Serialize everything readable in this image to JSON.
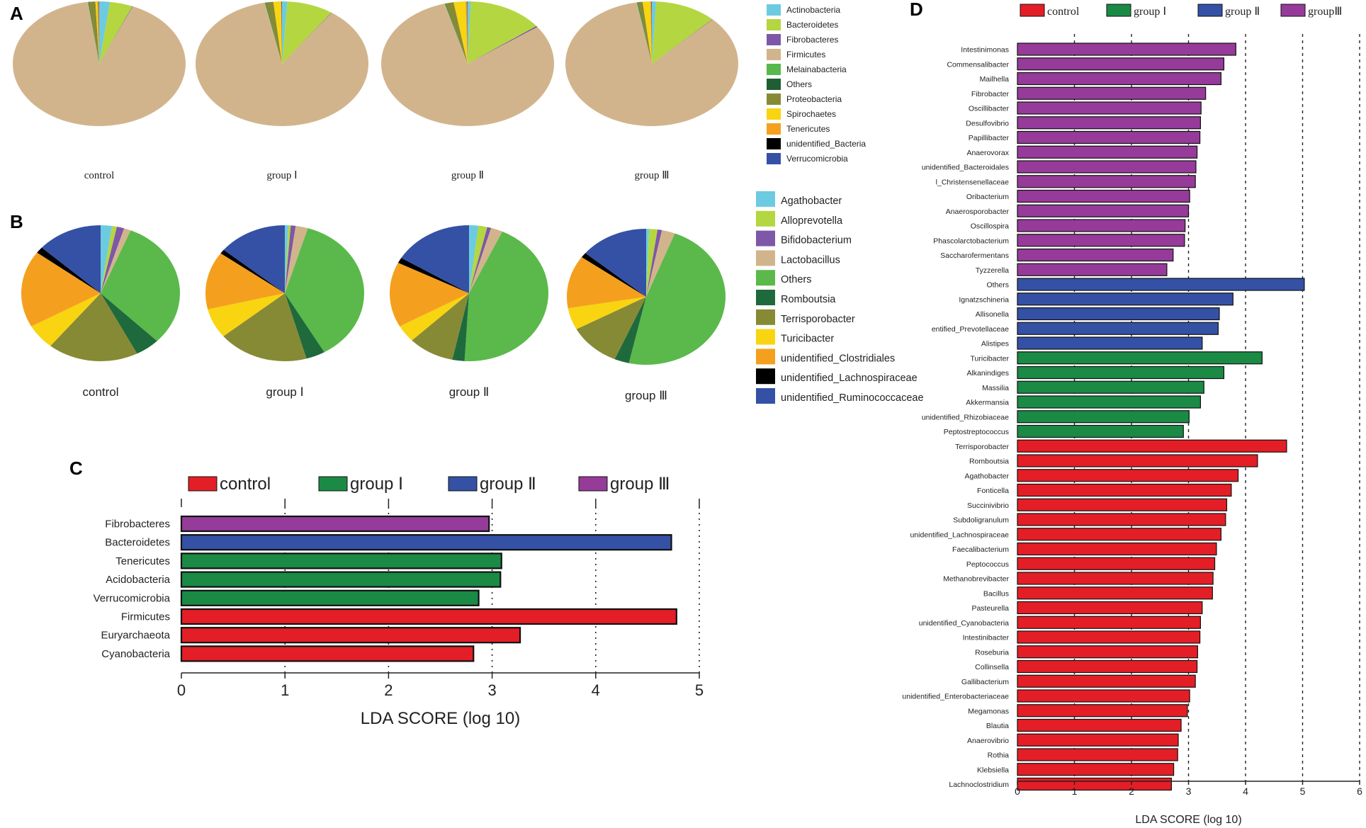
{
  "panels": {
    "a": "A",
    "b": "B",
    "c": "C",
    "d": "D"
  },
  "colors": {
    "control": "#e41e26",
    "group1": "#1a8a45",
    "group2": "#3451a5",
    "group3": "#963b9a",
    "Actinobacteria": "#6ccbe0",
    "Bacteroidetes": "#b4d640",
    "Fibrobacteres": "#7e57a8",
    "Firmicutes": "#d2b48c",
    "Melainabacteria": "#57b84c",
    "Others_phylum": "#1f5e33",
    "Proteobacteria": "#878a35",
    "Spirochaetes": "#f9d411",
    "Tenericutes": "#f4a01e",
    "unidentified_Bacteria": "#000000",
    "Verrucomicrobia": "#3451a5",
    "Agathobacter": "#6ccbe0",
    "Alloprevotella": "#b4d640",
    "Bifidobacterium": "#7e57a8",
    "Lactobacillus": "#d2b48c",
    "Others_genus": "#5ab94a",
    "Romboutsia": "#1f6a3c",
    "Terrisporobacter": "#878a35",
    "Turicibacter": "#f9d411",
    "unidentified_Clostridiales": "#f4a01e",
    "unidentified_Lachnospiraceae": "#000000",
    "unidentified_Ruminococcaceae": "#3451a5"
  },
  "chart_data": [
    {
      "type": "pie",
      "panel": "A",
      "legend_title": "",
      "labels": [
        "Actinobacteria",
        "Bacteroidetes",
        "Fibrobacteres",
        "Firmicutes",
        "Melainabacteria",
        "Others",
        "Proteobacteria",
        "Spirochaetes",
        "Tenericutes",
        "unidentified_Bacteria",
        "Verrucomicrobia"
      ],
      "color_keys": [
        "Actinobacteria",
        "Bacteroidetes",
        "Fibrobacteres",
        "Firmicutes",
        "Melainabacteria",
        "Others_phylum",
        "Proteobacteria",
        "Spirochaetes",
        "Tenericutes",
        "unidentified_Bacteria",
        "Verrucomicrobia"
      ],
      "groups": [
        {
          "name": "control",
          "values": {
            "Actinobacteria": 2.0,
            "Bacteroidetes": 4.3,
            "Fibrobacteres": 0.1,
            "Firmicutes": 91.5,
            "Melainabacteria": 0.1,
            "Others": 0.1,
            "Proteobacteria": 1.2,
            "Spirochaetes": 0.3,
            "Tenericutes": 0.3,
            "unidentified_Bacteria": 0.05,
            "Verrucomicrobia": 0.05
          }
        },
        {
          "name": "group Ⅰ",
          "values": {
            "Actinobacteria": 1.0,
            "Bacteroidetes": 8.7,
            "Fibrobacteres": 0.1,
            "Firmicutes": 87.0,
            "Melainabacteria": 0.1,
            "Others": 0.1,
            "Proteobacteria": 1.4,
            "Spirochaetes": 1.4,
            "Tenericutes": 0.1,
            "unidentified_Bacteria": 0.05,
            "Verrucomicrobia": 0.05
          }
        },
        {
          "name": "group Ⅱ",
          "values": {
            "Actinobacteria": 0.6,
            "Bacteroidetes": 14.1,
            "Fibrobacteres": 0.3,
            "Firmicutes": 81.0,
            "Melainabacteria": 0.1,
            "Others": 0.1,
            "Proteobacteria": 1.5,
            "Spirochaetes": 2.2,
            "Tenericutes": 0.3,
            "unidentified_Bacteria": 0.05,
            "Verrucomicrobia": 0.05
          }
        },
        {
          "name": "group Ⅲ",
          "values": {
            "Actinobacteria": 0.8,
            "Bacteroidetes": 11.6,
            "Fibrobacteres": 0.1,
            "Firmicutes": 85.0,
            "Melainabacteria": 0.1,
            "Others": 0.1,
            "Proteobacteria": 0.9,
            "Spirochaetes": 1.4,
            "Tenericutes": 0.2,
            "unidentified_Bacteria": 0.05,
            "Verrucomicrobia": 0.05
          }
        }
      ]
    },
    {
      "type": "pie",
      "panel": "B",
      "labels": [
        "Agathobacter",
        "Alloprevotella",
        "Bifidobacterium",
        "Lactobacillus",
        "Others",
        "Romboutsia",
        "Terrisporobacter",
        "Turicibacter",
        "unidentified_Clostridiales",
        "unidentified_Lachnospiraceae",
        "unidentified_Ruminococcaceae"
      ],
      "color_keys": [
        "Agathobacter",
        "Alloprevotella",
        "Bifidobacterium",
        "Lactobacillus",
        "Others_genus",
        "Romboutsia",
        "Terrisporobacter",
        "Turicibacter",
        "unidentified_Clostridiales",
        "unidentified_Lachnospiraceae",
        "unidentified_Ruminococcaceae"
      ],
      "groups": [
        {
          "name": "control",
          "values": {
            "Agathobacter": 2.3,
            "Alloprevotella": 1.0,
            "Bifidobacterium": 1.5,
            "Lactobacillus": 1.4,
            "Others": 31.2,
            "Romboutsia": 5.0,
            "Terrisporobacter": 18.5,
            "Turicibacter": 6.0,
            "unidentified_Clostridiales": 18.3,
            "unidentified_Lachnospiraceae": 1.5,
            "unidentified_Ruminococcaceae": 13.3
          }
        },
        {
          "name": "group Ⅰ",
          "values": {
            "Agathobacter": 0.7,
            "Alloprevotella": 0.5,
            "Bifidobacterium": 1.0,
            "Lactobacillus": 2.5,
            "Others": 37.0,
            "Romboutsia": 3.9,
            "Terrisporobacter": 18.5,
            "Turicibacter": 7.1,
            "unidentified_Clostridiales": 13.8,
            "unidentified_Lachnospiraceae": 1.0,
            "unidentified_Ruminococcaceae": 14.0
          }
        },
        {
          "name": "group Ⅱ",
          "values": {
            "Agathobacter": 1.9,
            "Alloprevotella": 1.8,
            "Bifidobacterium": 0.8,
            "Lactobacillus": 2.4,
            "Others": 44.0,
            "Romboutsia": 2.5,
            "Terrisporobacter": 9.4,
            "Turicibacter": 4.1,
            "unidentified_Clostridiales": 15.5,
            "unidentified_Lachnospiraceae": 1.3,
            "unidentified_Ruminococcaceae": 16.3
          }
        },
        {
          "name": "group Ⅲ",
          "values": {
            "Agathobacter": 0.6,
            "Alloprevotella": 1.7,
            "Bifidobacterium": 0.9,
            "Lactobacillus": 2.7,
            "Others": 47.6,
            "Romboutsia": 3.0,
            "Terrisporobacter": 10.6,
            "Turicibacter": 5.2,
            "unidentified_Clostridiales": 12.6,
            "unidentified_Lachnospiraceae": 1.2,
            "unidentified_Ruminococcaceae": 13.9
          }
        }
      ]
    },
    {
      "type": "bar",
      "panel": "C",
      "orientation": "horizontal",
      "legend": [
        {
          "name": "control",
          "color_key": "control"
        },
        {
          "name": "group Ⅰ",
          "color_key": "group1"
        },
        {
          "name": "group Ⅱ",
          "color_key": "group2"
        },
        {
          "name": "group Ⅲ",
          "color_key": "group3"
        }
      ],
      "xlabel": "LDA SCORE (log 10)",
      "xlim": [
        0,
        5
      ],
      "ticks": [
        0,
        1,
        2,
        3,
        4,
        5
      ],
      "bars": [
        {
          "label": "Fibrobacteres",
          "value": 2.97,
          "group": "group3"
        },
        {
          "label": "Bacteroidetes",
          "value": 4.73,
          "group": "group2"
        },
        {
          "label": "Tenericutes",
          "value": 3.09,
          "group": "group1"
        },
        {
          "label": "Acidobacteria",
          "value": 3.08,
          "group": "group1"
        },
        {
          "label": "Verrucomicrobia",
          "value": 2.87,
          "group": "group1"
        },
        {
          "label": "Firmicutes",
          "value": 4.78,
          "group": "control"
        },
        {
          "label": "Euryarchaeota",
          "value": 3.27,
          "group": "control"
        },
        {
          "label": "Cyanobacteria",
          "value": 2.82,
          "group": "control"
        }
      ]
    },
    {
      "type": "bar",
      "panel": "D",
      "orientation": "horizontal",
      "legend": [
        {
          "name": "control",
          "color_key": "control"
        },
        {
          "name": "group Ⅰ",
          "color_key": "group1"
        },
        {
          "name": "group Ⅱ",
          "color_key": "group2"
        },
        {
          "name": "groupⅢ",
          "color_key": "group3"
        }
      ],
      "xlabel": "LDA SCORE (log 10)",
      "xlim": [
        0,
        6
      ],
      "ticks": [
        0,
        1,
        2,
        3,
        4,
        5,
        6
      ],
      "bars": [
        {
          "label": "Intestinimonas",
          "value": 3.83,
          "group": "group3"
        },
        {
          "label": "Commensalibacter",
          "value": 3.62,
          "group": "group3"
        },
        {
          "label": "Mailhella",
          "value": 3.57,
          "group": "group3"
        },
        {
          "label": "Fibrobacter",
          "value": 3.3,
          "group": "group3"
        },
        {
          "label": "Oscillibacter",
          "value": 3.22,
          "group": "group3"
        },
        {
          "label": "Desulfovibrio",
          "value": 3.21,
          "group": "group3"
        },
        {
          "label": "Papillibacter",
          "value": 3.2,
          "group": "group3"
        },
        {
          "label": "Anaerovorax",
          "value": 3.15,
          "group": "group3"
        },
        {
          "label": "unidentified_Bacteroidales",
          "value": 3.13,
          "group": "group3"
        },
        {
          "label": "l_Christensenellaceae",
          "value": 3.12,
          "group": "group3"
        },
        {
          "label": "Oribacterium",
          "value": 3.02,
          "group": "group3"
        },
        {
          "label": "Anaerosporobacter",
          "value": 3.0,
          "group": "group3"
        },
        {
          "label": "Oscillospira",
          "value": 2.94,
          "group": "group3"
        },
        {
          "label": "Phascolarctobacterium",
          "value": 2.93,
          "group": "group3"
        },
        {
          "label": "Saccharofermentans",
          "value": 2.73,
          "group": "group3"
        },
        {
          "label": "Tyzzerella",
          "value": 2.62,
          "group": "group3"
        },
        {
          "label": "Others",
          "value": 5.03,
          "group": "group2"
        },
        {
          "label": "Ignatzschineria",
          "value": 3.78,
          "group": "group2"
        },
        {
          "label": "Allisonella",
          "value": 3.54,
          "group": "group2"
        },
        {
          "label": "entified_Prevotellaceae",
          "value": 3.52,
          "group": "group2"
        },
        {
          "label": "Alistipes",
          "value": 3.24,
          "group": "group2"
        },
        {
          "label": "Turicibacter",
          "value": 4.29,
          "group": "group1"
        },
        {
          "label": "Alkanindiges",
          "value": 3.62,
          "group": "group1"
        },
        {
          "label": "Massilia",
          "value": 3.27,
          "group": "group1"
        },
        {
          "label": "Akkermansia",
          "value": 3.21,
          "group": "group1"
        },
        {
          "label": "unidentified_Rhizobiaceae",
          "value": 3.01,
          "group": "group1"
        },
        {
          "label": "Peptostreptococcus",
          "value": 2.91,
          "group": "group1"
        },
        {
          "label": "Terrisporobacter",
          "value": 4.72,
          "group": "control"
        },
        {
          "label": "Romboutsia",
          "value": 4.21,
          "group": "control"
        },
        {
          "label": "Agathobacter",
          "value": 3.87,
          "group": "control"
        },
        {
          "label": "Fonticella",
          "value": 3.75,
          "group": "control"
        },
        {
          "label": "Succinivibrio",
          "value": 3.67,
          "group": "control"
        },
        {
          "label": "Subdoligranulum",
          "value": 3.65,
          "group": "control"
        },
        {
          "label": "unidentified_Lachnospiraceae",
          "value": 3.57,
          "group": "control"
        },
        {
          "label": "Faecalibacterium",
          "value": 3.49,
          "group": "control"
        },
        {
          "label": "Peptococcus",
          "value": 3.46,
          "group": "control"
        },
        {
          "label": "Methanobrevibacter",
          "value": 3.43,
          "group": "control"
        },
        {
          "label": "Bacillus",
          "value": 3.42,
          "group": "control"
        },
        {
          "label": "Pasteurella",
          "value": 3.24,
          "group": "control"
        },
        {
          "label": "unidentified_Cyanobacteria",
          "value": 3.21,
          "group": "control"
        },
        {
          "label": "Intestinibacter",
          "value": 3.2,
          "group": "control"
        },
        {
          "label": "Roseburia",
          "value": 3.16,
          "group": "control"
        },
        {
          "label": "Collinsella",
          "value": 3.15,
          "group": "control"
        },
        {
          "label": "Gallibacterium",
          "value": 3.12,
          "group": "control"
        },
        {
          "label": "unidentified_Enterobacteriaceae",
          "value": 3.02,
          "group": "control"
        },
        {
          "label": "Megamonas",
          "value": 2.98,
          "group": "control"
        },
        {
          "label": "Blautia",
          "value": 2.87,
          "group": "control"
        },
        {
          "label": "Anaerovibrio",
          "value": 2.82,
          "group": "control"
        },
        {
          "label": "Rothia",
          "value": 2.81,
          "group": "control"
        },
        {
          "label": "Klebsiella",
          "value": 2.74,
          "group": "control"
        },
        {
          "label": "Lachnoclostridium",
          "value": 2.7,
          "group": "control"
        }
      ]
    }
  ]
}
